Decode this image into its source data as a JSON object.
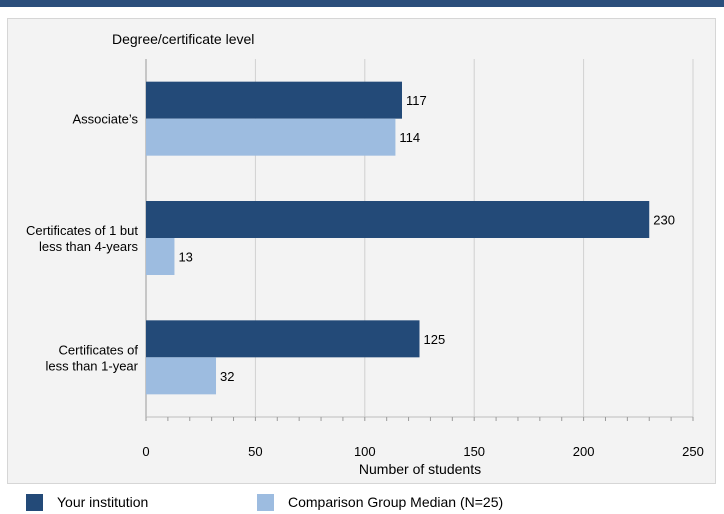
{
  "colors": {
    "your_institution": "#234a78",
    "comparison": "#9dbce0"
  },
  "chart_data": {
    "type": "bar",
    "orientation": "horizontal",
    "categories": [
      [
        "Associate’s"
      ],
      [
        "Certificates of 1 but",
        "less than 4-years"
      ],
      [
        "Certificates of",
        "less than 1-year"
      ]
    ],
    "series": [
      {
        "name": "Your institution",
        "values": [
          117,
          230,
          125
        ]
      },
      {
        "name": "Comparison Group Median (N=25)",
        "values": [
          114,
          13,
          32
        ]
      }
    ],
    "title": "Degree/certificate level",
    "xlabel": "Number of students",
    "ylabel": "",
    "xlim": [
      0,
      250
    ],
    "x_ticks": [
      0,
      50,
      100,
      150,
      200,
      250
    ],
    "grid": true,
    "legend_position": "bottom"
  }
}
